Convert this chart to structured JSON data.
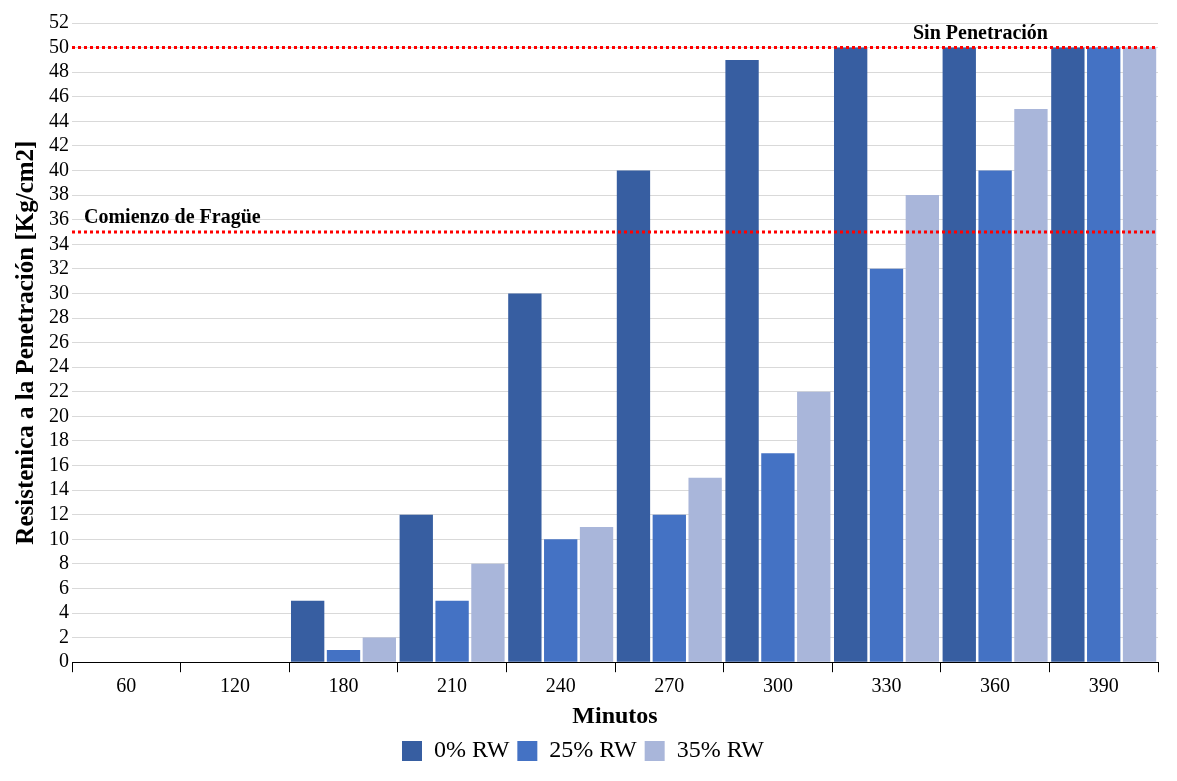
{
  "chart_data": {
    "type": "bar",
    "xlabel": "Minutos",
    "ylabel": "Resistenica a la Penetración [Kg/cm2]",
    "categories": [
      "60",
      "120",
      "180",
      "210",
      "240",
      "270",
      "300",
      "330",
      "360",
      "390"
    ],
    "series": [
      {
        "name": "0% RW",
        "color": "#375ea1",
        "values": [
          0,
          0,
          5,
          12,
          30,
          40,
          49,
          50,
          50,
          50
        ]
      },
      {
        "name": "25% RW",
        "color": "#4472c4",
        "values": [
          0,
          0,
          1,
          5,
          10,
          12,
          17,
          32,
          40,
          50
        ]
      },
      {
        "name": "35% RW",
        "color": "#a9b6da",
        "values": [
          0,
          0,
          2,
          8,
          11,
          15,
          22,
          38,
          45,
          50
        ]
      }
    ],
    "ylim": [
      0,
      52
    ],
    "yticks": [
      0,
      2,
      4,
      6,
      8,
      10,
      12,
      14,
      16,
      18,
      20,
      22,
      24,
      26,
      28,
      30,
      32,
      34,
      36,
      38,
      40,
      42,
      44,
      46,
      48,
      50,
      52
    ],
    "grid": "y",
    "legend": "bottom",
    "ref_lines": [
      {
        "axis": "y",
        "value": 50,
        "label": "Sin Penetración",
        "color": "#ff0000",
        "line_style": "dotted"
      },
      {
        "axis": "y",
        "value": 35,
        "label": "Comienzo de Fragüe",
        "color": "#ff0000",
        "line_style": "dotted"
      }
    ]
  }
}
